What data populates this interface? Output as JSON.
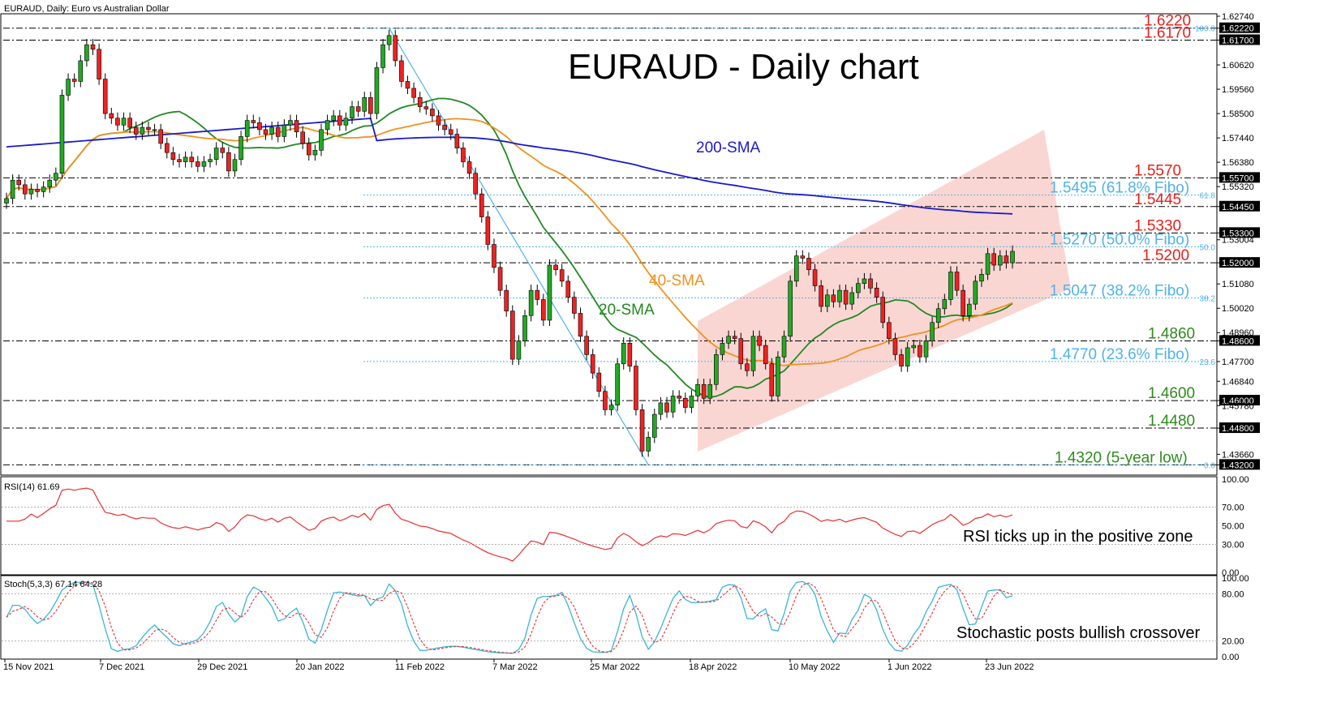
{
  "header": {
    "symbol_line": "EURAUD, Daily:  Euro vs Australian Dollar",
    "rsi_label": "RSI(14) 61.69",
    "stoch_label": "Stoch(5,3,3) 67.14 64.28"
  },
  "colors": {
    "bull": "#22aa22",
    "bear": "#ee2222",
    "sma20": "#228822",
    "sma40": "#f0921e",
    "sma200": "#1a1acc",
    "resistance_label": "#e8201b",
    "support_label": "#2e8b1e",
    "fibo": "#4fb3e8",
    "channel": "#f8c8c4",
    "rsi": "#e83030",
    "stoch_main": "#3ab5d6",
    "stoch_signal": "#e83030"
  },
  "chart_data": {
    "type": "candlestick",
    "title": "EURAUD - Daily chart",
    "ylim": [
      1.4286,
      1.6274
    ],
    "price_ticks": [
      "1.62740",
      "1.62220",
      "1.61700",
      "1.60620",
      "1.59560",
      "1.58500",
      "1.57440",
      "1.56380",
      "1.55700",
      "1.55320",
      "1.54450",
      "1.53300",
      "1.53004",
      "1.52000",
      "1.51080",
      "1.50020",
      "1.48960",
      "1.48600",
      "1.47700",
      "1.46840",
      "1.46000",
      "1.45780",
      "1.44800",
      "1.43660",
      "1.43200"
    ],
    "date_ticks": [
      "15 Nov 2021",
      "7 Dec 2021",
      "29 Dec 2021",
      "20 Jan 2022",
      "11 Feb 2022",
      "7 Mar 2022",
      "25 Mar 2022",
      "18 Apr 2022",
      "10 May 2022",
      "1 Jun 2022",
      "23 Jun 2022"
    ],
    "rsi_ticks": [
      "100.00",
      "70.00",
      "50.00",
      "30.00",
      "0.00"
    ],
    "stoch_ticks": [
      "100.00",
      "80.00",
      "20.00",
      "0.00"
    ],
    "levels": [
      {
        "price": 1.6222,
        "label": "1.6220",
        "kind": "resistance",
        "tag": "1.62220"
      },
      {
        "price": 1.617,
        "label": "1.6170",
        "kind": "resistance",
        "tag": "1.61700"
      },
      {
        "price": 1.557,
        "label": "1.5570",
        "kind": "resistance",
        "tag": "1.55700"
      },
      {
        "price": 1.5445,
        "label": "1.5445",
        "kind": "resistance",
        "tag": "1.54450"
      },
      {
        "price": 1.533,
        "label": "1.5330",
        "kind": "resistance",
        "tag": "1.53300"
      },
      {
        "price": 1.52,
        "label": "1.5200",
        "kind": "resistance",
        "tag": "1.52000"
      },
      {
        "price": 1.486,
        "label": "1.4860",
        "kind": "support",
        "tag": "1.48600"
      },
      {
        "price": 1.46,
        "label": "1.4600",
        "kind": "support",
        "tag": "1.46000"
      },
      {
        "price": 1.448,
        "label": "1.4480",
        "kind": "support",
        "tag": "1.44800"
      },
      {
        "price": 1.432,
        "label": "",
        "kind": "support",
        "tag": "1.43200"
      }
    ],
    "fibo": [
      {
        "price": 1.6222,
        "pct": "100.0",
        "label": ""
      },
      {
        "price": 1.5495,
        "pct": "61.8",
        "label": "1.5495 (61.8% Fibo)"
      },
      {
        "price": 1.527,
        "pct": "50.0",
        "label": "1.5270 (50.0% Fibo)"
      },
      {
        "price": 1.5047,
        "pct": "38.2",
        "label": "1.5047 (38.2% Fibo)"
      },
      {
        "price": 1.477,
        "pct": "23.6",
        "label": "1.4770 (23.6% Fibo)"
      },
      {
        "price": 1.432,
        "pct": "0.0",
        "label": "1.4320 (5-year low)"
      }
    ],
    "sma_labels": {
      "sma20": "20-SMA",
      "sma40": "40-SMA",
      "sma200": "200-SMA"
    },
    "closes": [
      1.548,
      1.556,
      1.554,
      1.55,
      1.552,
      1.551,
      1.553,
      1.556,
      1.559,
      1.593,
      1.6,
      1.599,
      1.608,
      1.615,
      1.613,
      1.6,
      1.585,
      1.583,
      1.58,
      1.583,
      1.579,
      1.576,
      1.579,
      1.578,
      1.578,
      1.572,
      1.568,
      1.565,
      1.564,
      1.566,
      1.564,
      1.562,
      1.564,
      1.565,
      1.57,
      1.568,
      1.56,
      1.565,
      1.575,
      1.582,
      1.581,
      1.578,
      1.576,
      1.579,
      1.575,
      1.58,
      1.582,
      1.577,
      1.572,
      1.567,
      1.569,
      1.578,
      1.582,
      1.584,
      1.58,
      1.583,
      1.588,
      1.586,
      1.592,
      1.585,
      1.605,
      1.615,
      1.619,
      1.608,
      1.599,
      1.596,
      1.592,
      1.588,
      1.587,
      1.584,
      1.58,
      1.578,
      1.576,
      1.57,
      1.564,
      1.559,
      1.55,
      1.54,
      1.528,
      1.518,
      1.508,
      1.499,
      1.478,
      1.486,
      1.497,
      1.508,
      1.504,
      1.495,
      1.519,
      1.517,
      1.512,
      1.505,
      1.498,
      1.488,
      1.48,
      1.472,
      1.464,
      1.456,
      1.458,
      1.476,
      1.485,
      1.475,
      1.456,
      1.438,
      1.444,
      1.454,
      1.459,
      1.455,
      1.462,
      1.461,
      1.457,
      1.462,
      1.467,
      1.461,
      1.467,
      1.48,
      1.485,
      1.488,
      1.487,
      1.476,
      1.473,
      1.488,
      1.484,
      1.476,
      1.462,
      1.479,
      1.488,
      1.512,
      1.523,
      1.522,
      1.517,
      1.51,
      1.501,
      1.506,
      1.503,
      1.508,
      1.502,
      1.507,
      1.511,
      1.513,
      1.509,
      1.505,
      1.494,
      1.487,
      1.48,
      1.475,
      1.483,
      1.484,
      1.479,
      1.486,
      1.494,
      1.5,
      1.504,
      1.516,
      1.508,
      1.497,
      1.502,
      1.512,
      1.515,
      1.524,
      1.519,
      1.523,
      1.52,
      1.525
    ]
  },
  "annotations": {
    "rsi_note": "RSI ticks up in the positive zone",
    "stoch_note": "Stochastic posts bullish crossover"
  }
}
